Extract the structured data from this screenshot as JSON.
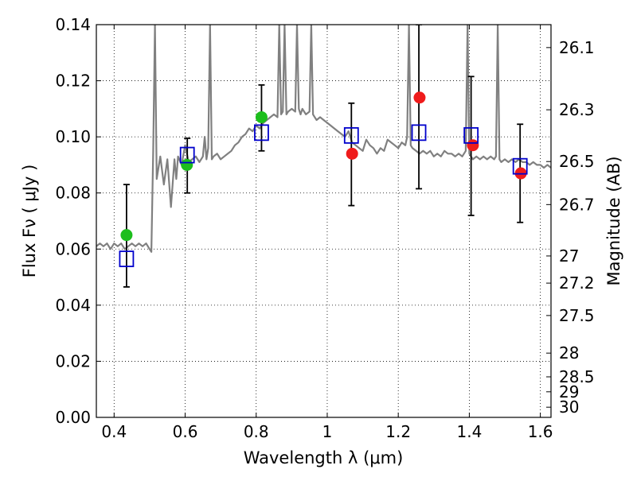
{
  "chart_data": {
    "type": "scatter",
    "xlabel": "Wavelength  λ (μm)",
    "ylabel": "Flux  Fν  ( μJy )",
    "ylabel_right": "Magnitude (AB)",
    "xlim": [
      0.35,
      1.63
    ],
    "ylim": [
      0.0,
      0.14
    ],
    "grid": true,
    "x_ticks": [
      {
        "value": 0.4,
        "label": "0.4"
      },
      {
        "value": 0.6,
        "label": "0.6"
      },
      {
        "value": 0.8,
        "label": "0.8"
      },
      {
        "value": 1.0,
        "label": "1"
      },
      {
        "value": 1.2,
        "label": "1.2"
      },
      {
        "value": 1.4,
        "label": "1.4"
      },
      {
        "value": 1.6,
        "label": "1.6"
      }
    ],
    "y_ticks": [
      {
        "value": 0.0,
        "label": "0.00"
      },
      {
        "value": 0.02,
        "label": "0.02"
      },
      {
        "value": 0.04,
        "label": "0.04"
      },
      {
        "value": 0.06,
        "label": "0.06"
      },
      {
        "value": 0.08,
        "label": "0.08"
      },
      {
        "value": 0.1,
        "label": "0.10"
      },
      {
        "value": 0.12,
        "label": "0.12"
      },
      {
        "value": 0.14,
        "label": "0.14"
      }
    ],
    "mag_ticks": [
      {
        "value": 26.1,
        "label": "26.1"
      },
      {
        "value": 26.3,
        "label": "26.3"
      },
      {
        "value": 26.5,
        "label": "26.5"
      },
      {
        "value": 26.7,
        "label": "26.7"
      },
      {
        "value": 27.0,
        "label": "27"
      },
      {
        "value": 27.2,
        "label": "27.2"
      },
      {
        "value": 27.5,
        "label": "27.5"
      },
      {
        "value": 28.0,
        "label": "28"
      },
      {
        "value": 28.5,
        "label": "28.5"
      },
      {
        "value": 29.0,
        "label": "29"
      },
      {
        "value": 30.0,
        "label": "30"
      }
    ],
    "spectrum": {
      "color": "#808080",
      "x": [
        0.35,
        0.36,
        0.37,
        0.38,
        0.39,
        0.4,
        0.41,
        0.42,
        0.43,
        0.44,
        0.45,
        0.46,
        0.47,
        0.48,
        0.49,
        0.5,
        0.505,
        0.51,
        0.515,
        0.52,
        0.53,
        0.54,
        0.55,
        0.56,
        0.57,
        0.575,
        0.58,
        0.59,
        0.6,
        0.61,
        0.62,
        0.63,
        0.64,
        0.65,
        0.655,
        0.66,
        0.665,
        0.67,
        0.675,
        0.68,
        0.69,
        0.7,
        0.71,
        0.72,
        0.73,
        0.74,
        0.75,
        0.76,
        0.77,
        0.78,
        0.79,
        0.8,
        0.81,
        0.82,
        0.83,
        0.84,
        0.85,
        0.86,
        0.865,
        0.87,
        0.875,
        0.88,
        0.885,
        0.89,
        0.9,
        0.91,
        0.915,
        0.92,
        0.925,
        0.93,
        0.94,
        0.95,
        0.955,
        0.96,
        0.965,
        0.97,
        0.98,
        0.99,
        1.0,
        1.01,
        1.02,
        1.03,
        1.04,
        1.05,
        1.06,
        1.07,
        1.08,
        1.09,
        1.1,
        1.11,
        1.12,
        1.13,
        1.14,
        1.15,
        1.16,
        1.17,
        1.18,
        1.19,
        1.2,
        1.21,
        1.22,
        1.225,
        1.23,
        1.235,
        1.24,
        1.25,
        1.26,
        1.27,
        1.28,
        1.29,
        1.3,
        1.31,
        1.32,
        1.33,
        1.34,
        1.35,
        1.36,
        1.37,
        1.38,
        1.39,
        1.395,
        1.4,
        1.405,
        1.41,
        1.42,
        1.43,
        1.44,
        1.45,
        1.46,
        1.47,
        1.475,
        1.48,
        1.485,
        1.49,
        1.5,
        1.51,
        1.52,
        1.53,
        1.54,
        1.55,
        1.56,
        1.57,
        1.58,
        1.59,
        1.6,
        1.61,
        1.62,
        1.63
      ],
      "y": [
        0.061,
        0.062,
        0.061,
        0.062,
        0.06,
        0.062,
        0.061,
        0.062,
        0.06,
        0.061,
        0.062,
        0.061,
        0.062,
        0.061,
        0.062,
        0.06,
        0.059,
        0.095,
        0.14,
        0.085,
        0.093,
        0.083,
        0.092,
        0.075,
        0.092,
        0.085,
        0.093,
        0.09,
        0.097,
        0.091,
        0.092,
        0.093,
        0.091,
        0.093,
        0.1,
        0.092,
        0.096,
        0.14,
        0.092,
        0.093,
        0.094,
        0.092,
        0.093,
        0.094,
        0.095,
        0.097,
        0.098,
        0.1,
        0.101,
        0.103,
        0.102,
        0.104,
        0.103,
        0.105,
        0.106,
        0.107,
        0.108,
        0.107,
        0.14,
        0.108,
        0.109,
        0.14,
        0.108,
        0.109,
        0.11,
        0.109,
        0.14,
        0.11,
        0.108,
        0.11,
        0.108,
        0.109,
        0.14,
        0.108,
        0.107,
        0.106,
        0.107,
        0.106,
        0.105,
        0.104,
        0.103,
        0.102,
        0.101,
        0.1,
        0.102,
        0.098,
        0.097,
        0.096,
        0.095,
        0.099,
        0.097,
        0.096,
        0.094,
        0.096,
        0.095,
        0.099,
        0.098,
        0.097,
        0.096,
        0.098,
        0.097,
        0.1,
        0.14,
        0.097,
        0.096,
        0.095,
        0.094,
        0.095,
        0.094,
        0.095,
        0.093,
        0.094,
        0.093,
        0.095,
        0.094,
        0.094,
        0.093,
        0.094,
        0.093,
        0.095,
        0.14,
        0.094,
        0.093,
        0.092,
        0.093,
        0.092,
        0.093,
        0.092,
        0.093,
        0.092,
        0.093,
        0.14,
        0.092,
        0.091,
        0.092,
        0.091,
        0.092,
        0.091,
        0.092,
        0.091,
        0.091,
        0.09,
        0.091,
        0.09,
        0.09,
        0.089,
        0.09,
        0.089
      ]
    },
    "observed": [
      {
        "x": 0.435,
        "y": 0.065,
        "color": "#1dbe1d"
      },
      {
        "x": 0.605,
        "y": 0.09,
        "color": "#1dbe1d"
      },
      {
        "x": 0.815,
        "y": 0.107,
        "color": "#1dbe1d"
      },
      {
        "x": 1.07,
        "y": 0.094,
        "color": "#ef1b1b"
      },
      {
        "x": 1.26,
        "y": 0.114,
        "color": "#ef1b1b"
      },
      {
        "x": 1.41,
        "y": 0.097,
        "color": "#ef1b1b"
      },
      {
        "x": 1.545,
        "y": 0.087,
        "color": "#ef1b1b"
      }
    ],
    "model": [
      {
        "x": 0.435,
        "y": 0.0565,
        "err_low": 0.0465,
        "err_high": 0.083
      },
      {
        "x": 0.606,
        "y": 0.0935,
        "err_low": 0.08,
        "err_high": 0.0995
      },
      {
        "x": 0.815,
        "y": 0.1015,
        "err_low": 0.095,
        "err_high": 0.1185
      },
      {
        "x": 1.068,
        "y": 0.1005,
        "err_low": 0.0755,
        "err_high": 0.112
      },
      {
        "x": 1.258,
        "y": 0.1015,
        "err_low": 0.0815,
        "err_high": 0.14
      },
      {
        "x": 1.405,
        "y": 0.1005,
        "err_low": 0.072,
        "err_high": 0.1215
      },
      {
        "x": 1.543,
        "y": 0.0895,
        "err_low": 0.0695,
        "err_high": 0.1045
      }
    ],
    "model_color": "#0000cc"
  }
}
